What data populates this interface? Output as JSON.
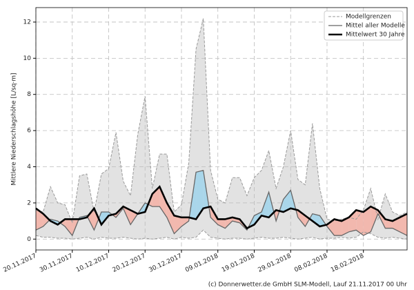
{
  "chart_data": {
    "type": "line",
    "y_label": "Mittlere Niederschlagshöhe [L/sq·m]",
    "footer": "(c) Donnerwetter.de GmbH SLM-Modell, Lauf 21.11.2017 00 Uhr",
    "x": [
      "2017-11-20",
      "2017-11-22",
      "2017-11-24",
      "2017-11-26",
      "2017-11-28",
      "2017-11-30",
      "2017-12-02",
      "2017-12-04",
      "2017-12-06",
      "2017-12-08",
      "2017-12-10",
      "2017-12-12",
      "2017-12-14",
      "2017-12-16",
      "2017-12-18",
      "2017-12-20",
      "2017-12-22",
      "2017-12-24",
      "2017-12-26",
      "2017-12-28",
      "2017-12-30",
      "2018-01-01",
      "2018-01-03",
      "2018-01-05",
      "2018-01-07",
      "2018-01-09",
      "2018-01-11",
      "2018-01-13",
      "2018-01-15",
      "2018-01-17",
      "2018-01-19",
      "2018-01-21",
      "2018-01-23",
      "2018-01-25",
      "2018-01-27",
      "2018-01-29",
      "2018-01-31",
      "2018-02-02",
      "2018-02-04",
      "2018-02-06",
      "2018-02-08",
      "2018-02-10",
      "2018-02-12",
      "2018-02-14",
      "2018-02-16",
      "2018-02-18",
      "2018-02-20",
      "2018-02-22",
      "2018-02-24",
      "2018-02-26",
      "2018-02-28",
      "2018-03-02"
    ],
    "range": {
      "name": "Modellgrenzen",
      "color": "#999999",
      "fill": "#e2e2e2",
      "high": [
        1.6,
        1.5,
        2.9,
        2.0,
        1.9,
        0.9,
        3.5,
        3.6,
        1.5,
        3.6,
        3.9,
        5.9,
        3.2,
        2.4,
        5.8,
        7.9,
        2.8,
        4.7,
        4.7,
        1.5,
        1.9,
        4.2,
        10.5,
        12.2,
        3.8,
        2.2,
        2.0,
        3.4,
        3.4,
        2.4,
        3.4,
        3.8,
        4.9,
        2.8,
        4.0,
        6.0,
        3.3,
        3.0,
        6.4,
        2.8,
        1.1,
        1.0,
        1.1,
        1.2,
        1.1,
        1.6,
        2.8,
        1.1,
        2.5,
        1.5,
        1.3,
        1.5
      ],
      "low": [
        0.2,
        0.1,
        0.1,
        0.05,
        0.05,
        0.0,
        0.05,
        0.1,
        0.0,
        0.1,
        0.05,
        0.05,
        0.1,
        0.05,
        0.0,
        0.05,
        0.0,
        0.05,
        0.1,
        0.0,
        0.1,
        0.05,
        0.1,
        0.5,
        0.1,
        0.05,
        0.0,
        0.05,
        0.05,
        0.0,
        0.05,
        0.1,
        0.05,
        0.05,
        0.1,
        0.05,
        0.0,
        0.05,
        0.1,
        0.0,
        0.05,
        0.05,
        0.1,
        0.05,
        0.1,
        0.4,
        0.3,
        0.1,
        0.05,
        0.1,
        0.05,
        0.0
      ]
    },
    "series": [
      {
        "name": "Mittel aller Modelle",
        "color": "#666666",
        "width": 1.3,
        "values": [
          0.5,
          0.7,
          1.1,
          1.0,
          0.7,
          0.2,
          1.2,
          1.3,
          0.5,
          1.5,
          1.5,
          1.2,
          1.7,
          0.8,
          1.4,
          2.0,
          1.8,
          1.8,
          1.2,
          0.3,
          0.7,
          1.0,
          3.7,
          3.8,
          1.2,
          0.8,
          0.6,
          1.0,
          0.9,
          0.5,
          1.3,
          1.5,
          2.6,
          1.0,
          2.2,
          2.7,
          1.2,
          0.7,
          1.4,
          1.3,
          0.7,
          0.2,
          0.2,
          0.4,
          0.5,
          0.2,
          0.4,
          1.4,
          0.6,
          0.6,
          0.4,
          0.2
        ]
      },
      {
        "name": "Mittelwert 30 Jahre",
        "color": "#000000",
        "width": 2.6,
        "values": [
          1.7,
          1.4,
          1.0,
          0.8,
          1.1,
          1.1,
          1.1,
          1.2,
          1.7,
          0.8,
          1.3,
          1.4,
          1.8,
          1.6,
          1.4,
          1.5,
          2.5,
          2.9,
          2.0,
          1.3,
          1.2,
          1.2,
          1.1,
          1.7,
          1.8,
          1.1,
          1.1,
          1.2,
          1.1,
          0.6,
          0.8,
          1.3,
          1.2,
          1.6,
          1.5,
          1.7,
          1.6,
          1.3,
          1.0,
          0.7,
          0.8,
          1.1,
          1.0,
          1.2,
          1.6,
          1.5,
          1.8,
          1.6,
          1.1,
          1.0,
          1.2,
          1.4
        ]
      }
    ],
    "above_color": "#a9d6ea",
    "below_color": "#f2b8ae",
    "xlim": [
      "2017-11-20",
      "2018-03-02"
    ],
    "xticks": [
      {
        "value": "2017-11-20",
        "label": "20.11.2017"
      },
      {
        "value": "2017-11-30",
        "label": "30.11.2017"
      },
      {
        "value": "2017-12-10",
        "label": "10.12.2017"
      },
      {
        "value": "2017-12-20",
        "label": "20.12.2017"
      },
      {
        "value": "2017-12-30",
        "label": "30.12.2017"
      },
      {
        "value": "2018-01-09",
        "label": "09.01.2018"
      },
      {
        "value": "2018-01-19",
        "label": "19.01.2018"
      },
      {
        "value": "2018-01-29",
        "label": "29.01.2018"
      },
      {
        "value": "2018-02-08",
        "label": "08.02.2018"
      },
      {
        "value": "2018-02-18",
        "label": "18.02.2018"
      }
    ],
    "ylim": [
      -0.6,
      12.8
    ],
    "yticks": [
      0,
      2,
      4,
      6,
      8,
      10,
      12
    ],
    "grid": true,
    "legend": "upper right"
  }
}
